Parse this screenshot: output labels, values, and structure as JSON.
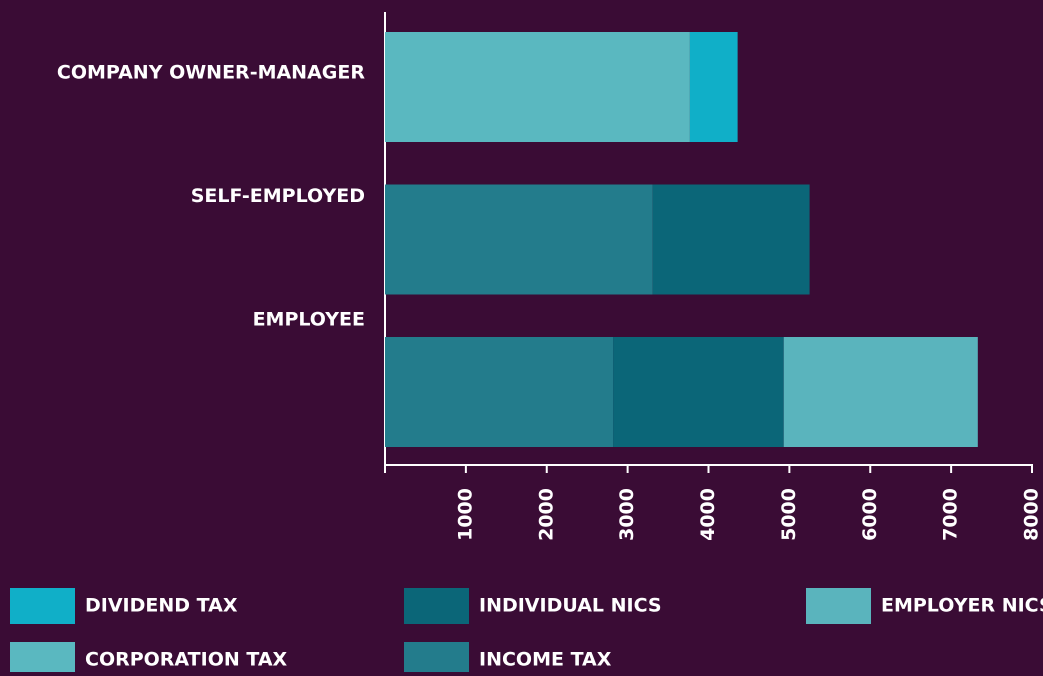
{
  "chart_data": {
    "type": "stacked-bar-horizontal",
    "categories": [
      "COMPANY OWNER-MANAGER",
      "SELF-EMPLOYED",
      "EMPLOYEE"
    ],
    "series": [
      {
        "name": "INCOME TAX",
        "color": "#237c8c",
        "values": [
          null,
          3310,
          2820
        ]
      },
      {
        "name": "CORPORATION TAX",
        "color": "#5ab8c0",
        "values": [
          3770,
          null,
          null
        ]
      },
      {
        "name": "INDIVIDUAL NICS",
        "color": "#0b6678",
        "values": [
          null,
          1940,
          2110
        ]
      },
      {
        "name": "EMPLOYER NICS",
        "color": "#5ab4bd",
        "values": [
          null,
          null,
          2400
        ]
      },
      {
        "name": "DIVIDEND TAX",
        "color": "#10afc8",
        "values": [
          590,
          null,
          null
        ]
      }
    ],
    "xlim": [
      0,
      8000
    ],
    "xticks": [
      1000,
      2000,
      3000,
      4000,
      5000,
      6000,
      7000,
      8000
    ]
  }
}
